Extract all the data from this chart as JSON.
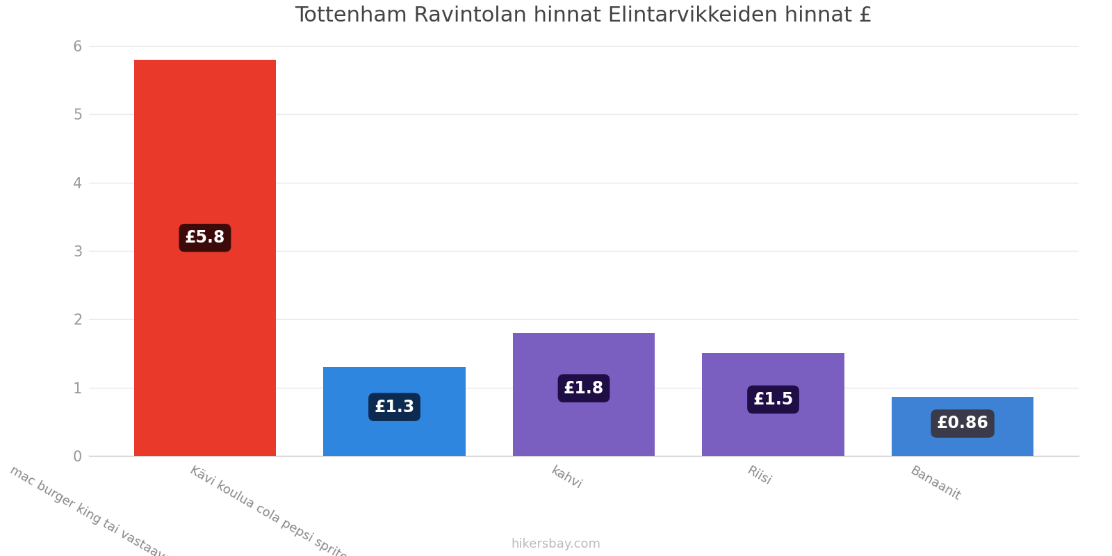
{
  "title": "Tottenham Ravintolan hinnat Elintarvikkeiden hinnat £",
  "categories": [
    "mac burger king tai vastaava baari",
    "Kävi koulua cola pepsi sprite mirinda",
    "kahvi",
    "Riisi",
    "Banaanit"
  ],
  "values": [
    5.8,
    1.3,
    1.8,
    1.5,
    0.86
  ],
  "bar_colors": [
    "#e8392a",
    "#2e86de",
    "#7b5fc0",
    "#7b5fc0",
    "#3d82d4"
  ],
  "label_bg_colors": [
    "#3d0a0a",
    "#0d2a50",
    "#1e0e45",
    "#1e0e45",
    "#3a3a4a"
  ],
  "labels": [
    "£5.8",
    "£1.3",
    "£1.8",
    "£1.5",
    "£0.86"
  ],
  "ylim": [
    0,
    6.1
  ],
  "yticks": [
    0,
    1,
    2,
    3,
    4,
    5,
    6
  ],
  "footer_text": "hikersbay.com",
  "background_color": "#ffffff",
  "title_fontsize": 22,
  "label_fontsize": 17,
  "tick_fontsize": 15,
  "footer_fontsize": 13,
  "bar_width": 0.75,
  "xlabel_rotation": -30,
  "xlabel_fontsize": 13
}
